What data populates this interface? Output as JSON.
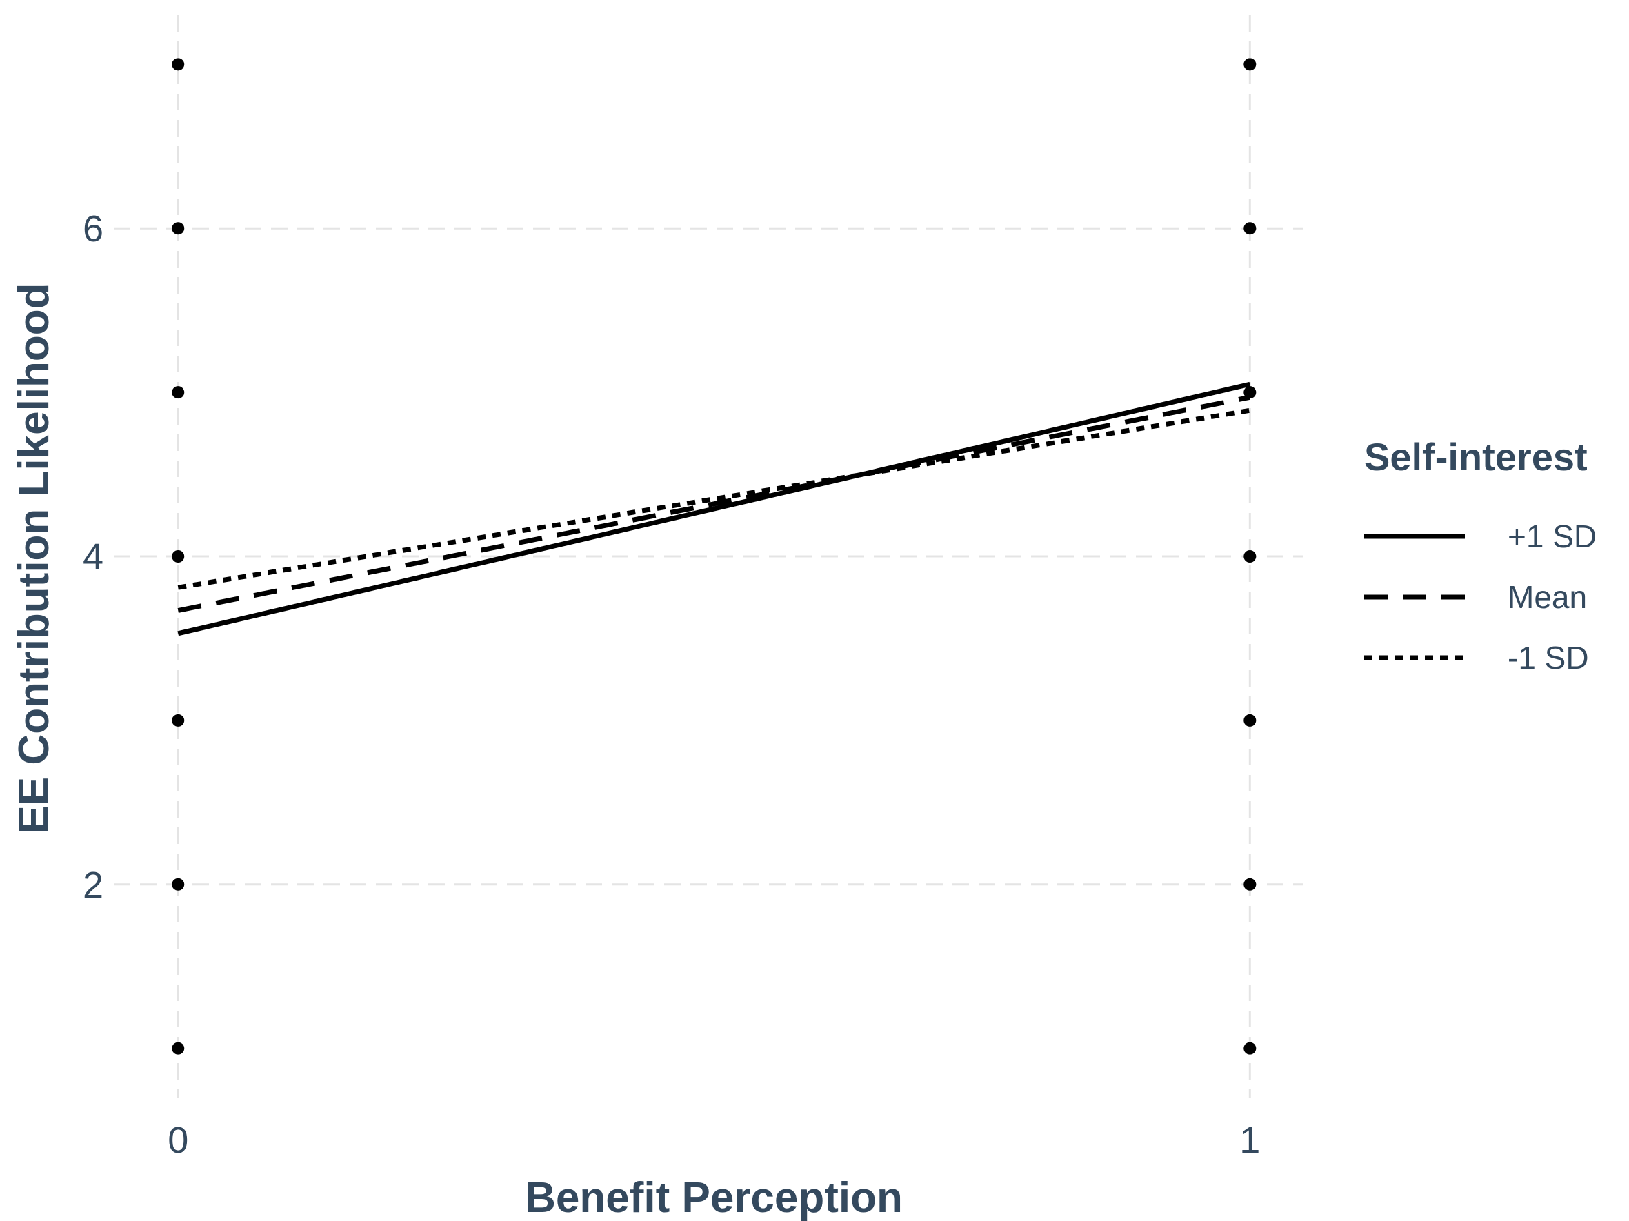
{
  "chart_data": {
    "type": "line",
    "xlabel": "Benefit Perception",
    "ylabel": "EE Contribution Likelihood",
    "x_ticks": [
      0,
      1
    ],
    "y_ticks": [
      2,
      4,
      6
    ],
    "xlim": [
      -0.06,
      1.05
    ],
    "ylim": [
      0.7,
      7.3
    ],
    "grid": "on",
    "legend": {
      "title": "Self-interest",
      "placement": "right"
    },
    "series": [
      {
        "name": "+1 SD",
        "line_style": "solid",
        "x": [
          0,
          1
        ],
        "y": [
          3.53,
          5.05
        ]
      },
      {
        "name": "Mean",
        "line_style": "dashed",
        "x": [
          0,
          1
        ],
        "y": [
          3.67,
          4.97
        ]
      },
      {
        "name": "-1 SD",
        "line_style": "dotted",
        "x": [
          0,
          1
        ],
        "y": [
          3.81,
          4.89
        ]
      }
    ],
    "points": [
      {
        "x": 0,
        "y": 1
      },
      {
        "x": 0,
        "y": 2
      },
      {
        "x": 0,
        "y": 3
      },
      {
        "x": 0,
        "y": 4
      },
      {
        "x": 0,
        "y": 5
      },
      {
        "x": 0,
        "y": 6
      },
      {
        "x": 0,
        "y": 7
      },
      {
        "x": 1,
        "y": 1
      },
      {
        "x": 1,
        "y": 2
      },
      {
        "x": 1,
        "y": 3
      },
      {
        "x": 1,
        "y": 4
      },
      {
        "x": 1,
        "y": 5
      },
      {
        "x": 1,
        "y": 6
      },
      {
        "x": 1,
        "y": 7
      }
    ],
    "colors": {
      "text": "#34495e",
      "line": "#000000",
      "point": "#000000",
      "grid": "#e4e4e4"
    }
  }
}
